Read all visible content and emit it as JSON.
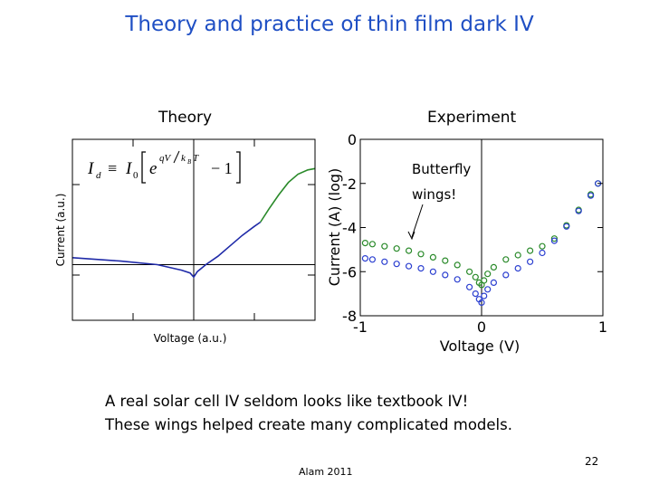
{
  "slide": {
    "title": "Theory and practice of thin film dark IV",
    "number": "22",
    "footer": "Alam 2011",
    "body_lines": [
      "A real solar cell IV seldom looks like textbook IV!",
      "These wings helped create many complicated models."
    ]
  },
  "theory_panel": {
    "label": "Theory",
    "equation": {
      "lhs_symbol": "I",
      "lhs_subscript": "d",
      "relation": "≡",
      "prefactor_symbol": "I",
      "prefactor_subscript": "0",
      "exp_base": "e",
      "exponent_numerator": "qV",
      "exponent_denominator_symbol": "k",
      "exponent_denominator_subscript": "B",
      "exponent_denominator_tail": "T",
      "minus_term": "− 1"
    }
  },
  "experiment_panel": {
    "label": "Experiment",
    "annotation": [
      "Butterfly",
      "wings!"
    ]
  },
  "chart_data": [
    {
      "type": "line",
      "xlabel": "Voltage (a.u.)",
      "ylabel": "Current (a.u.)",
      "series": [
        {
          "color": "#1f2aa8",
          "x": [
            -1.0,
            -0.6,
            -0.3,
            -0.1,
            -0.03,
            0.0,
            0.03,
            0.1,
            0.2,
            0.3,
            0.4,
            0.5,
            0.55
          ],
          "y": [
            0.1,
            0.05,
            0.0,
            -0.08,
            -0.12,
            -0.18,
            -0.1,
            0.0,
            0.12,
            0.27,
            0.42,
            0.55,
            0.61
          ]
        },
        {
          "color": "#2a8a2a",
          "x": [
            0.55,
            0.62,
            0.7,
            0.78,
            0.86,
            0.94,
            1.0
          ],
          "y": [
            0.61,
            0.8,
            1.0,
            1.18,
            1.3,
            1.36,
            1.38
          ]
        }
      ],
      "xlim": [
        -1,
        1
      ],
      "ylim": [
        -0.8,
        1.8
      ],
      "crosshair": {
        "x": 0,
        "y": 0
      }
    },
    {
      "type": "scatter",
      "xlabel": "Voltage (V)",
      "ylabel": "Current (A) (log)",
      "xlim": [
        -1,
        1
      ],
      "ylim": [
        -8,
        0
      ],
      "xticks": [
        "-1",
        "0",
        "1"
      ],
      "yticks": [
        "0",
        "-2",
        "-4",
        "-6",
        "-8"
      ],
      "series": [
        {
          "color": "#2a8a2a",
          "x": [
            -0.96,
            -0.9,
            -0.8,
            -0.7,
            -0.6,
            -0.5,
            -0.4,
            -0.3,
            -0.2,
            -0.1,
            -0.05,
            -0.02,
            0.0,
            0.02,
            0.05,
            0.1,
            0.2,
            0.3,
            0.4,
            0.5,
            0.6,
            0.7,
            0.8,
            0.9,
            0.96
          ],
          "y": [
            -4.7,
            -4.75,
            -4.85,
            -4.95,
            -5.05,
            -5.2,
            -5.35,
            -5.5,
            -5.7,
            -6.0,
            -6.25,
            -6.5,
            -6.6,
            -6.4,
            -6.1,
            -5.8,
            -5.45,
            -5.25,
            -5.05,
            -4.85,
            -4.5,
            -3.9,
            -3.2,
            -2.5,
            -2.0
          ]
        },
        {
          "color": "#2b3fd0",
          "x": [
            -0.96,
            -0.9,
            -0.8,
            -0.7,
            -0.6,
            -0.5,
            -0.4,
            -0.3,
            -0.2,
            -0.1,
            -0.05,
            -0.02,
            0.0,
            0.02,
            0.05,
            0.1,
            0.2,
            0.3,
            0.4,
            0.5,
            0.6,
            0.7,
            0.8,
            0.9,
            0.96
          ],
          "y": [
            -5.4,
            -5.45,
            -5.55,
            -5.65,
            -5.75,
            -5.85,
            -6.0,
            -6.15,
            -6.35,
            -6.7,
            -7.0,
            -7.25,
            -7.4,
            -7.1,
            -6.8,
            -6.5,
            -6.15,
            -5.85,
            -5.55,
            -5.15,
            -4.6,
            -3.95,
            -3.25,
            -2.55,
            -2.0
          ]
        }
      ],
      "crosshair": {
        "x": 0
      }
    }
  ]
}
